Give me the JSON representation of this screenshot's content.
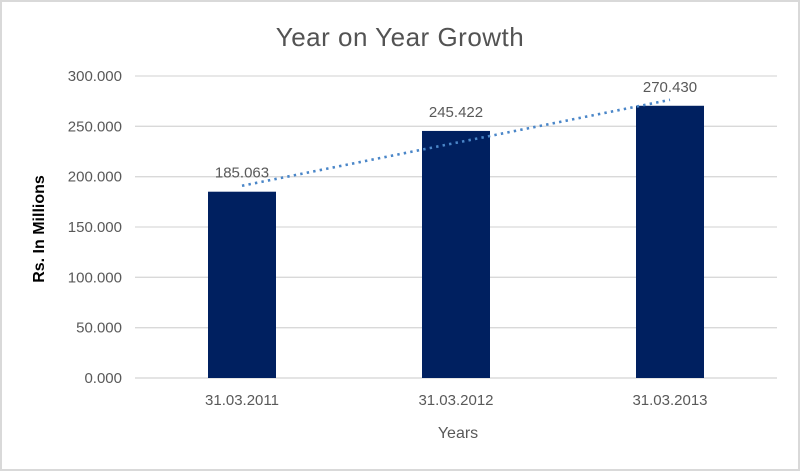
{
  "chart_data": {
    "type": "bar",
    "title": "Year on Year Growth",
    "xlabel": "Years",
    "ylabel": "Rs. In Millions",
    "categories": [
      "31.03.2011",
      "31.03.2012",
      "31.03.2013"
    ],
    "values": [
      185.063,
      245.422,
      270.43
    ],
    "data_labels": [
      "185.063",
      "245.422",
      "270.430"
    ],
    "y_ticks": [
      "0.000",
      "50.000",
      "100.000",
      "150.000",
      "200.000",
      "250.000",
      "300.000"
    ],
    "ylim": [
      0,
      300
    ],
    "y_tick_step": 50,
    "grid": true,
    "legend": "none",
    "trendline": {
      "type": "linear",
      "style": "dotted"
    },
    "colors": {
      "bar": "#002060",
      "trendline": "#4a86c8",
      "gridline": "#d9d9d9",
      "axis_line": "#d3d3d3",
      "tick_text": "#595959",
      "data_label_text": "#595959",
      "title_text": "#535353",
      "axis_title_text": "#000000",
      "border": "#d9d9d9",
      "background": "#ffffff"
    }
  }
}
